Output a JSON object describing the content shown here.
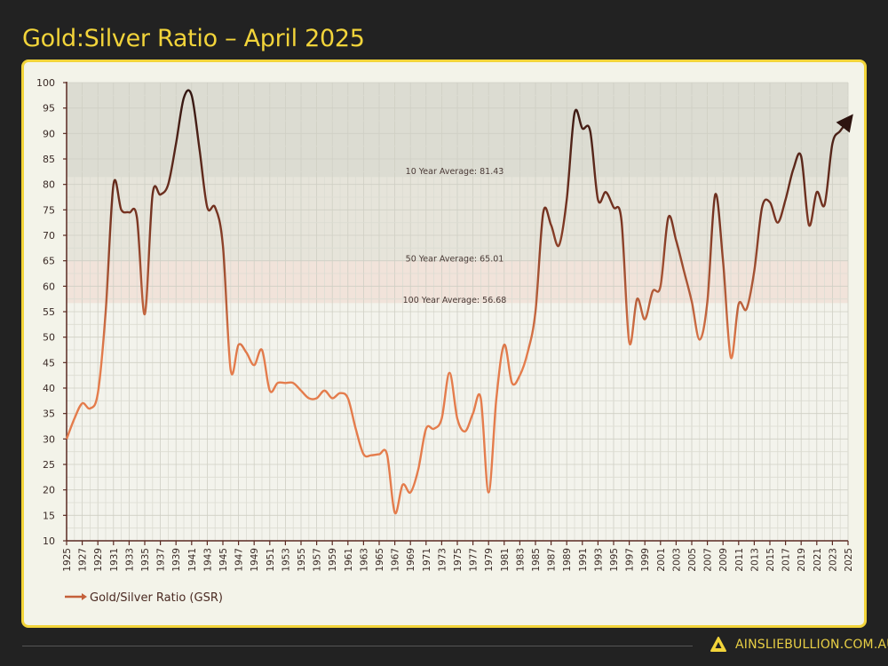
{
  "title": "Gold:Silver Ratio – April 2025",
  "brand": {
    "text": "AINSLIEBULLION.COM.AU",
    "logo_letter": "A",
    "color": "#f2d43a"
  },
  "colors": {
    "low_line": "#e47c4c",
    "high_line": "#2e1410",
    "background": "#222222",
    "card": "#f3f3e9",
    "accent": "#f2d43a"
  },
  "chart_data": {
    "type": "line",
    "title": "Gold:Silver Ratio – April 2025",
    "xlabel": "",
    "ylabel": "",
    "xlim": [
      1925,
      2025
    ],
    "ylim": [
      10,
      100
    ],
    "yticks": [
      10,
      15,
      20,
      25,
      30,
      35,
      40,
      45,
      50,
      55,
      60,
      65,
      70,
      75,
      80,
      85,
      90,
      95,
      100
    ],
    "xticks": [
      1925,
      1927,
      1929,
      1931,
      1933,
      1935,
      1937,
      1939,
      1941,
      1943,
      1945,
      1947,
      1949,
      1951,
      1953,
      1955,
      1957,
      1959,
      1961,
      1963,
      1965,
      1967,
      1969,
      1971,
      1973,
      1975,
      1977,
      1979,
      1981,
      1983,
      1985,
      1987,
      1989,
      1991,
      1993,
      1995,
      1997,
      1999,
      2001,
      2003,
      2005,
      2007,
      2009,
      2011,
      2013,
      2015,
      2017,
      2019,
      2021,
      2023,
      2025
    ],
    "grid": true,
    "legend_placement": "bottom-left",
    "series": [
      {
        "name": "Gold/Silver Ratio (GSR)",
        "x": [
          1925,
          1926,
          1927,
          1928,
          1929,
          1930,
          1931,
          1932,
          1933,
          1934,
          1935,
          1936,
          1937,
          1938,
          1939,
          1940,
          1941,
          1942,
          1943,
          1944,
          1945,
          1946,
          1947,
          1948,
          1949,
          1950,
          1951,
          1952,
          1953,
          1954,
          1955,
          1956,
          1957,
          1958,
          1959,
          1960,
          1961,
          1962,
          1963,
          1964,
          1965,
          1966,
          1967,
          1968,
          1969,
          1970,
          1971,
          1972,
          1973,
          1974,
          1975,
          1976,
          1977,
          1978,
          1979,
          1980,
          1981,
          1982,
          1983,
          1984,
          1985,
          1986,
          1987,
          1988,
          1989,
          1990,
          1991,
          1992,
          1993,
          1994,
          1995,
          1996,
          1997,
          1998,
          1999,
          2000,
          2001,
          2002,
          2003,
          2004,
          2005,
          2006,
          2007,
          2008,
          2009,
          2010,
          2011,
          2012,
          2013,
          2014,
          2015,
          2016,
          2017,
          2018,
          2019,
          2020,
          2021,
          2022,
          2023,
          2024,
          2025
        ],
        "y": [
          30,
          34,
          37,
          36,
          39,
          55,
          80,
          75,
          74.5,
          73.5,
          54.5,
          78,
          78,
          80,
          88,
          97,
          97.5,
          87,
          75.5,
          75.5,
          68,
          43.5,
          48.5,
          47,
          44.5,
          47.5,
          39.5,
          41,
          41,
          41,
          39.5,
          38,
          38,
          39.5,
          38,
          39,
          38,
          32,
          27,
          26.8,
          27,
          27,
          15.5,
          21,
          19.5,
          24,
          32,
          32,
          34,
          43,
          34,
          31.5,
          35,
          38,
          19.5,
          38,
          48.5,
          41,
          42.5,
          47,
          55,
          74.5,
          72,
          68,
          77,
          94,
          91,
          90.5,
          77,
          78.5,
          75.5,
          73,
          49,
          57.5,
          53.5,
          59,
          60,
          73.5,
          69,
          63,
          57,
          49.5,
          57,
          78,
          65,
          46,
          56.5,
          55.5,
          63,
          75.5,
          76.5,
          72.5,
          77,
          83,
          85.5,
          72,
          78.5,
          76,
          88,
          90.5,
          92.5
        ]
      }
    ],
    "averages": [
      {
        "label": "10 Year Average: 81.43",
        "value": 81.43
      },
      {
        "label": "50 Year Average: 65.01",
        "value": 65.01
      },
      {
        "label": "100 Year Average: 56.68",
        "value": 56.68
      }
    ]
  }
}
